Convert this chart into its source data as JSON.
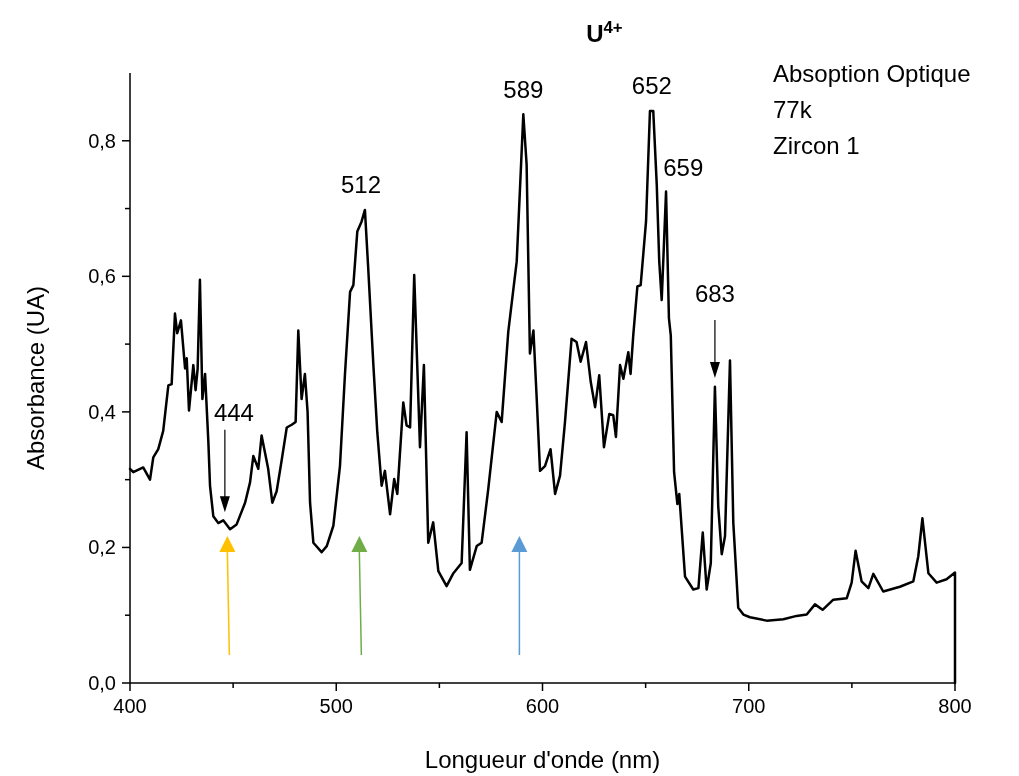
{
  "chart_data": {
    "type": "line",
    "title": "U$^{4+}$",
    "xlabel": "Longueur d'onde (nm)",
    "ylabel": "Absorbance (UA)",
    "xlim": [
      400,
      800
    ],
    "ylim": [
      0,
      0.9
    ],
    "xticks": [
      400,
      {
        "value": 450,
        "label": null
      },
      500,
      {
        "value": 550,
        "label": null
      },
      600,
      {
        "value": 650,
        "label": null
      },
      700,
      {
        "value": 750,
        "label": null
      },
      800
    ],
    "yticks": [
      {
        "value": 0,
        "label": "0,0"
      },
      {
        "value": 0.1,
        "label": null
      },
      {
        "value": 0.2,
        "label": "0,2"
      },
      {
        "value": 0.3,
        "label": null
      },
      {
        "value": 0.4,
        "label": "0,4"
      },
      {
        "value": 0.5,
        "label": null
      },
      {
        "value": 0.6,
        "label": "0,6"
      },
      {
        "value": 0.7,
        "label": null
      },
      {
        "value": 0.8,
        "label": "0,8"
      }
    ],
    "grid": false,
    "marker": "none",
    "line_style": "solid",
    "annotations": [
      {
        "text": "512",
        "x": 512,
        "y": 0.7
      },
      {
        "text": "589",
        "x": 590.7,
        "y": 0.84
      },
      {
        "text": "652",
        "x": 653,
        "y": 0.845
      },
      {
        "text": "659",
        "x": 660,
        "y": 0.725
      },
      "Absoption Optique",
      "77k",
      "Zircon 1",
      "444",
      "683"
    ],
    "series": [
      {
        "color": "#000000",
        "x": [
          400,
          401.6,
          406.4,
          409.7,
          411.3,
          413.7,
          416.1,
          418.6,
          420.2,
          421.8,
          422.9,
          424.7,
          426.7,
          427.5,
          428.6,
          430.7,
          431.8,
          432.8,
          433.9,
          435.1,
          436.4,
          438,
          438.8,
          440.4,
          442.8,
          445.2,
          448.5,
          451.7,
          455.8,
          458.2,
          459.8,
          462.2,
          463.8,
          467,
          469,
          471.1,
          473.5,
          476,
          478.4,
          480.3,
          481.6,
          483.2,
          484.8,
          486.1,
          487.3,
          488.9,
          492.9,
          495.4,
          498.6,
          501.8,
          504.2,
          506.7,
          508.3,
          510.2,
          512.3,
          513.9,
          515.5,
          518,
          519.9,
          522,
          523.6,
          526.1,
          528.1,
          529.6,
          532.5,
          534.1,
          535.8,
          537.8,
          540.6,
          542.5,
          544.6,
          547,
          549.5,
          553.5,
          556.8,
          560.8,
          563.2,
          564.8,
          568.1,
          570.5,
          573.7,
          577.8,
          580.2,
          583.4,
          587.5,
          590.7,
          592.3,
          593.9,
          595.6,
          597.2,
          598.8,
          601.2,
          603.9,
          606.1,
          608.5,
          610.9,
          614.1,
          616.5,
          618.5,
          621.1,
          623.4,
          625.5,
          627.5,
          629.8,
          632.4,
          634.3,
          635.6,
          637.6,
          639.2,
          641.6,
          642.7,
          644,
          646,
          647.6,
          650.2,
          652.1,
          653.7,
          655.4,
          656.6,
          657.8,
          659.9,
          661.3,
          662.2,
          663.8,
          665.4,
          666.3,
          669.1,
          673.1,
          675.6,
          677.7,
          679.6,
          681.6,
          683.6,
          685.2,
          686.9,
          688.5,
          690.9,
          692.5,
          694.9,
          697.4,
          700.6,
          708.7,
          716.8,
          723.2,
          728.1,
          732.1,
          735.8,
          741,
          747.5,
          749.9,
          751.8,
          754.7,
          758,
          760.4,
          765.2,
          773.3,
          779.8,
          782.2,
          784.2,
          787.1,
          791.1,
          795.9,
          800,
          800
        ],
        "values": [
          0.316,
          0.311,
          0.318,
          0.3,
          0.333,
          0.345,
          0.372,
          0.439,
          0.441,
          0.545,
          0.516,
          0.535,
          0.464,
          0.479,
          0.402,
          0.469,
          0.432,
          0.464,
          0.595,
          0.419,
          0.456,
          0.355,
          0.291,
          0.246,
          0.236,
          0.24,
          0.227,
          0.234,
          0.266,
          0.296,
          0.335,
          0.316,
          0.365,
          0.316,
          0.266,
          0.283,
          0.328,
          0.377,
          0.381,
          0.385,
          0.52,
          0.419,
          0.456,
          0.4,
          0.266,
          0.207,
          0.193,
          0.202,
          0.232,
          0.32,
          0.454,
          0.577,
          0.587,
          0.666,
          0.681,
          0.698,
          0.612,
          0.469,
          0.37,
          0.291,
          0.313,
          0.249,
          0.301,
          0.279,
          0.414,
          0.38,
          0.377,
          0.602,
          0.348,
          0.469,
          0.207,
          0.237,
          0.165,
          0.143,
          0.162,
          0.177,
          0.37,
          0.167,
          0.202,
          0.207,
          0.286,
          0.4,
          0.385,
          0.518,
          0.622,
          0.839,
          0.765,
          0.486,
          0.52,
          0.419,
          0.313,
          0.32,
          0.345,
          0.279,
          0.306,
          0.385,
          0.508,
          0.503,
          0.474,
          0.503,
          0.444,
          0.407,
          0.454,
          0.348,
          0.397,
          0.395,
          0.363,
          0.469,
          0.449,
          0.488,
          0.456,
          0.513,
          0.585,
          0.587,
          0.681,
          0.844,
          0.844,
          0.735,
          0.622,
          0.565,
          0.725,
          0.538,
          0.513,
          0.311,
          0.264,
          0.279,
          0.157,
          0.138,
          0.14,
          0.222,
          0.138,
          0.177,
          0.437,
          0.261,
          0.19,
          0.217,
          0.476,
          0.237,
          0.111,
          0.101,
          0.097,
          0.092,
          0.094,
          0.099,
          0.101,
          0.116,
          0.108,
          0.123,
          0.125,
          0.148,
          0.195,
          0.15,
          0.14,
          0.161,
          0.135,
          0.142,
          0.15,
          0.187,
          0.243,
          0.162,
          0.148,
          0.153,
          0.163,
          0
        ]
      }
    ]
  }
}
